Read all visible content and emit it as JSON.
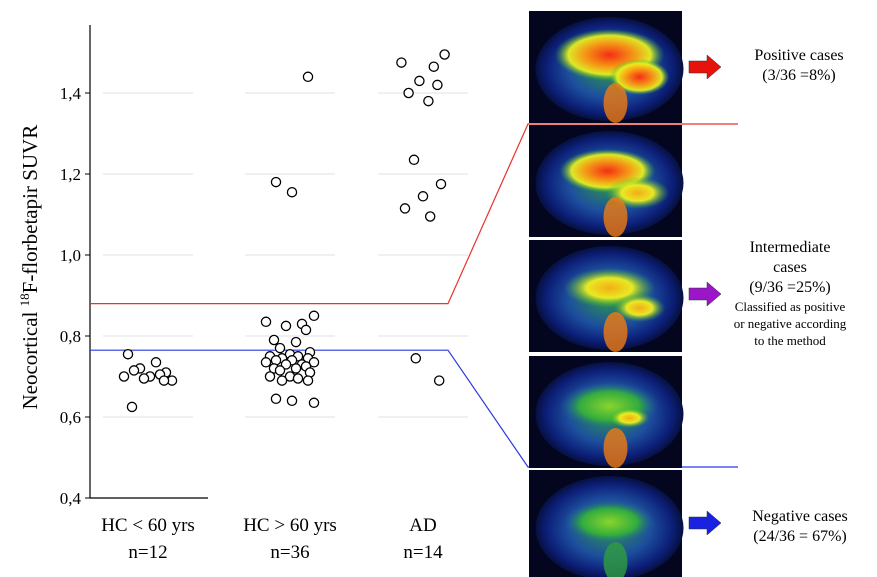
{
  "chart_data": {
    "type": "scatter",
    "ylabel_prefix": "Neocortical ",
    "ylabel_sup": "18",
    "ylabel_suffix": "F-florbetapir SUVR",
    "ylim": [
      0.4,
      1.55
    ],
    "yticks": [
      "0,4",
      "0,6",
      "0,8",
      "1,0",
      "1,2",
      "1,4"
    ],
    "ytick_values": [
      0.4,
      0.6,
      0.8,
      1.0,
      1.2,
      1.4
    ],
    "grid": true,
    "categories": [
      {
        "name": "HC < 60 yrs",
        "n": "n=12"
      },
      {
        "name": "HC > 60 yrs",
        "n": "n=36"
      },
      {
        "name": "AD",
        "n": "n=14"
      }
    ],
    "series": [
      {
        "values": [
          0.755,
          0.735,
          0.72,
          0.71,
          0.715,
          0.7,
          0.69,
          0.7,
          0.705,
          0.695,
          0.69,
          0.625
        ]
      },
      {
        "values": [
          1.44,
          1.18,
          1.155,
          0.85,
          0.835,
          0.83,
          0.825,
          0.815,
          0.79,
          0.785,
          0.77,
          0.76,
          0.755,
          0.75,
          0.75,
          0.745,
          0.745,
          0.74,
          0.74,
          0.735,
          0.735,
          0.73,
          0.73,
          0.725,
          0.72,
          0.72,
          0.715,
          0.71,
          0.7,
          0.7,
          0.695,
          0.69,
          0.69,
          0.645,
          0.64,
          0.635
        ]
      },
      {
        "values": [
          1.495,
          1.475,
          1.465,
          1.43,
          1.42,
          1.4,
          1.38,
          1.235,
          1.175,
          1.145,
          1.115,
          1.095,
          0.745,
          0.69
        ]
      }
    ],
    "thresholds": [
      {
        "value": 0.88,
        "color": "#e8332e"
      },
      {
        "value": 0.765,
        "color": "#2b3ae0"
      }
    ]
  },
  "annotations": {
    "positive": {
      "title": "Positive cases",
      "detail": "(3/36 =8%)",
      "arrow_color": "#e8120c"
    },
    "intermediate": {
      "title": "Intermediate",
      "title2": "cases",
      "detail": "(9/36 =25%)",
      "note1": "Classified as positive",
      "note2": "or negative according",
      "note3": "to the method",
      "arrow_color": "#9b16c8"
    },
    "negative": {
      "title": "Negative cases",
      "detail": "(24/36 = 67%)",
      "arrow_color": "#1822e0"
    }
  },
  "scans": [
    {
      "name": "scan-positive",
      "uptake": "high"
    },
    {
      "name": "scan-intermediate-high",
      "uptake": "mid-high"
    },
    {
      "name": "scan-intermediate",
      "uptake": "mid"
    },
    {
      "name": "scan-intermediate-low",
      "uptake": "mid-low"
    },
    {
      "name": "scan-negative",
      "uptake": "low"
    }
  ]
}
